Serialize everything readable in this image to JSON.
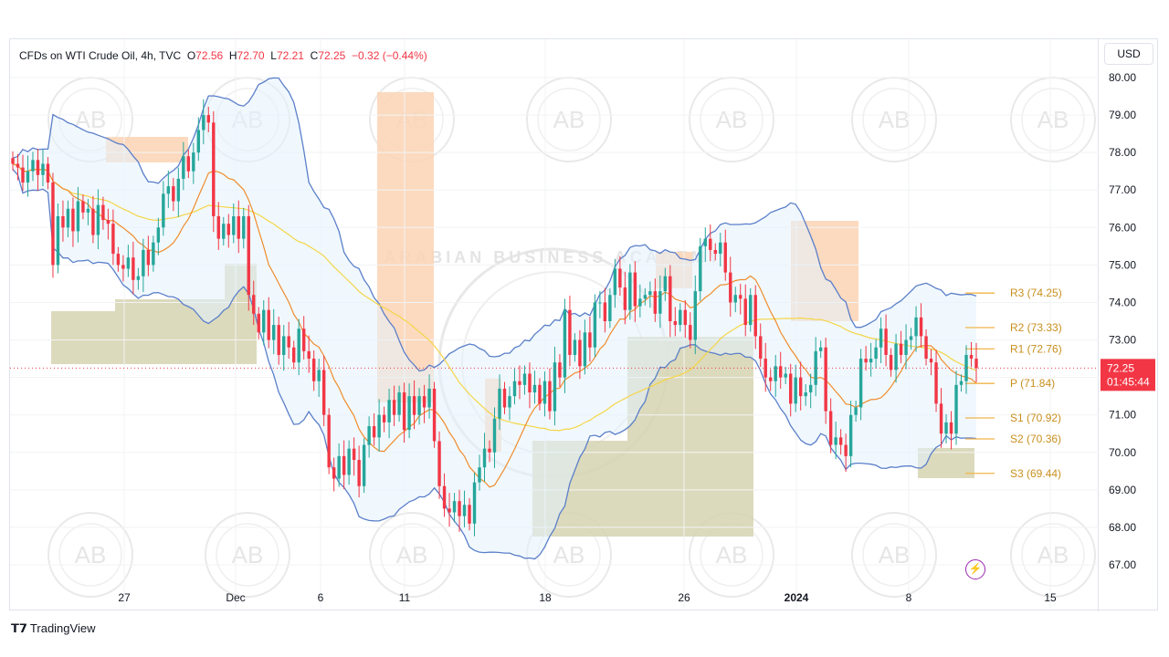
{
  "header": {
    "symbol": "CFDs on WTI Crude Oil, 4h, TVC",
    "open_label": "O",
    "open": "72.56",
    "high_label": "H",
    "high": "72.70",
    "low_label": "L",
    "low": "72.21",
    "close_label": "C",
    "close": "72.25",
    "change": "−0.32 (−0.44%)"
  },
  "currency": "USD",
  "price_tag": {
    "price": "72.25",
    "countdown": "01:45:44"
  },
  "branding": {
    "logo": "TradingView"
  },
  "watermark": {
    "initials": "AB",
    "name": "ARABIAN BUSINESS ACADEMY"
  },
  "colors": {
    "up": "#26a69a",
    "down": "#f23645",
    "bb": "#5b7fc9",
    "bb_fill": "#e3f2fd",
    "ma_fast": "#f08c2c",
    "ma_slow": "#f5d547",
    "pivot": "#f0b54a",
    "supply": "#fbd3b4",
    "demand": "#d6d3b0",
    "tag": "#f23645"
  },
  "chart_data": {
    "type": "candlestick",
    "title": "CFDs on WTI Crude Oil, 4h, TVC",
    "x_tick_labels": [
      "27",
      "Dec",
      "6",
      "11",
      "18",
      "26",
      "2024",
      "8",
      "15"
    ],
    "y_tick_labels": [
      "80.00",
      "79.00",
      "78.00",
      "77.00",
      "76.00",
      "75.00",
      "74.00",
      "73.00",
      "71.00",
      "70.00",
      "69.00",
      "68.00",
      "67.00"
    ],
    "ylim": [
      66.6,
      80.4
    ],
    "last_price": 72.25,
    "pivot_levels": [
      {
        "label": "R3",
        "value": 74.25,
        "text": "R3 (74.25)"
      },
      {
        "label": "R2",
        "value": 73.33,
        "text": "R2 (73.33)"
      },
      {
        "label": "R1",
        "value": 72.76,
        "text": "R1 (72.76)"
      },
      {
        "label": "P",
        "value": 71.84,
        "text": "P (71.84)"
      },
      {
        "label": "S1",
        "value": 70.92,
        "text": "S1 (70.92)"
      },
      {
        "label": "S2",
        "value": 70.36,
        "text": "S2 (70.36)"
      },
      {
        "label": "S3",
        "value": 69.44,
        "text": "S3 (69.44)"
      }
    ],
    "candles_close": [
      77.7,
      77.6,
      77.2,
      77.5,
      77.8,
      77.4,
      77.7,
      77.2,
      75.0,
      76.3,
      76.0,
      76.5,
      75.9,
      76.7,
      76.4,
      76.5,
      75.8,
      76.6,
      76.2,
      76.1,
      75.3,
      75.0,
      74.9,
      75.2,
      74.6,
      74.7,
      75.4,
      75.0,
      75.6,
      76.0,
      76.9,
      77.1,
      76.7,
      77.3,
      77.9,
      77.5,
      78.0,
      78.6,
      79.0,
      78.8,
      76.3,
      75.7,
      76.1,
      75.8,
      76.3,
      75.7,
      76.3,
      74.2,
      73.7,
      73.2,
      73.8,
      73.0,
      73.4,
      72.6,
      73.1,
      72.8,
      72.4,
      73.3,
      72.7,
      72.5,
      71.9,
      72.2,
      71.0,
      69.6,
      69.3,
      69.9,
      69.4,
      70.1,
      69.8,
      69.1,
      70.2,
      70.7,
      70.4,
      71.0,
      70.8,
      71.4,
      71.0,
      71.6,
      70.6,
      71.5,
      71.0,
      71.5,
      71.2,
      71.7,
      70.3,
      69.1,
      68.5,
      68.4,
      68.7,
      68.3,
      68.6,
      68.1,
      69.2,
      69.6,
      70.1,
      70.0,
      70.9,
      71.7,
      71.2,
      71.5,
      71.9,
      71.8,
      72.1,
      71.6,
      71.8,
      71.3,
      71.9,
      71.1,
      72.4,
      72.0,
      73.8,
      72.6,
      73.0,
      72.3,
      73.2,
      72.8,
      74.0,
      74.0,
      73.5,
      74.2,
      74.9,
      74.4,
      73.8,
      74.8,
      73.9,
      74.1,
      74.2,
      74.3,
      73.7,
      74.3,
      74.7,
      73.5,
      73.4,
      73.8,
      73.4,
      73.0,
      74.3,
      75.5,
      75.7,
      75.4,
      75.3,
      75.6,
      74.8,
      74.0,
      74.2,
      74.1,
      73.4,
      74.2,
      73.1,
      72.5,
      72.0,
      71.9,
      72.3,
      72.0,
      72.1,
      71.3,
      72.0,
      71.5,
      71.6,
      71.8,
      72.7,
      72.8,
      71.1,
      70.2,
      70.4,
      70.2,
      69.9,
      71.0,
      71.2,
      72.5,
      72.4,
      72.5,
      72.8,
      73.3,
      72.6,
      72.2,
      72.9,
      72.6,
      73.0,
      73.1,
      73.6,
      73.1,
      72.5,
      72.4,
      71.3,
      70.5,
      70.8,
      70.5,
      71.8,
      71.9,
      72.6,
      72.5,
      72.25
    ]
  }
}
